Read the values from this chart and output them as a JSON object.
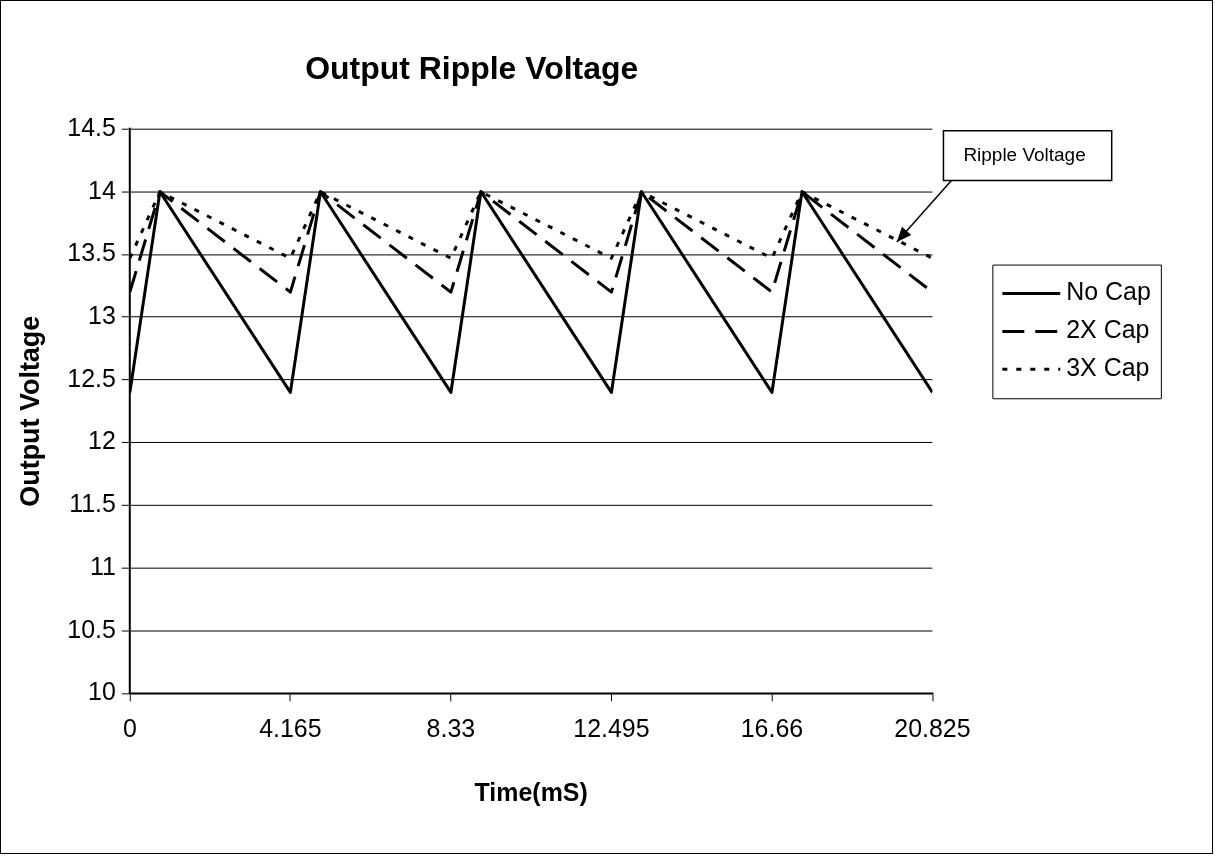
{
  "chart_data": {
    "type": "line",
    "title": "Output Ripple Voltage",
    "xlabel": "Time(mS)",
    "ylabel": "Output Voltage",
    "xlim": [
      0,
      20.825
    ],
    "xticks": [
      0,
      4.165,
      8.33,
      12.495,
      16.66,
      20.825
    ],
    "ylim": [
      10,
      14.5
    ],
    "yticks": [
      10,
      10.5,
      11,
      11.5,
      12,
      12.5,
      13,
      13.5,
      14,
      14.5
    ],
    "grid": "y",
    "legend": "right",
    "marker": "none",
    "annotations": [
      {
        "text": "Ripple Voltage",
        "x": 19.9,
        "y": 13.6
      }
    ],
    "series": [
      {
        "name": "No Cap",
        "color": "#000000",
        "line_style": "solid",
        "x": [
          0,
          0.78,
          4.165,
          4.945,
          8.33,
          9.11,
          12.495,
          13.275,
          16.66,
          17.44,
          20.825
        ],
        "values": [
          12.4,
          14,
          12.4,
          14,
          12.4,
          14,
          12.4,
          14,
          12.4,
          14,
          12.4
        ]
      },
      {
        "name": "2X Cap",
        "color": "#000000",
        "line_style": "dashed",
        "x": [
          0,
          0.78,
          4.165,
          4.945,
          8.33,
          9.11,
          12.495,
          13.275,
          16.66,
          17.44,
          20.825
        ],
        "values": [
          13.2,
          14,
          13.2,
          14,
          13.2,
          14,
          13.2,
          14,
          13.2,
          14,
          13.2
        ]
      },
      {
        "name": "3X Cap",
        "color": "#000000",
        "line_style": "dotted",
        "x": [
          0,
          0.78,
          4.165,
          4.945,
          8.33,
          9.11,
          12.495,
          13.275,
          16.66,
          17.44,
          20.825
        ],
        "values": [
          13.47,
          14,
          13.47,
          14,
          13.47,
          14,
          13.47,
          14,
          13.47,
          14,
          13.47
        ]
      }
    ]
  }
}
